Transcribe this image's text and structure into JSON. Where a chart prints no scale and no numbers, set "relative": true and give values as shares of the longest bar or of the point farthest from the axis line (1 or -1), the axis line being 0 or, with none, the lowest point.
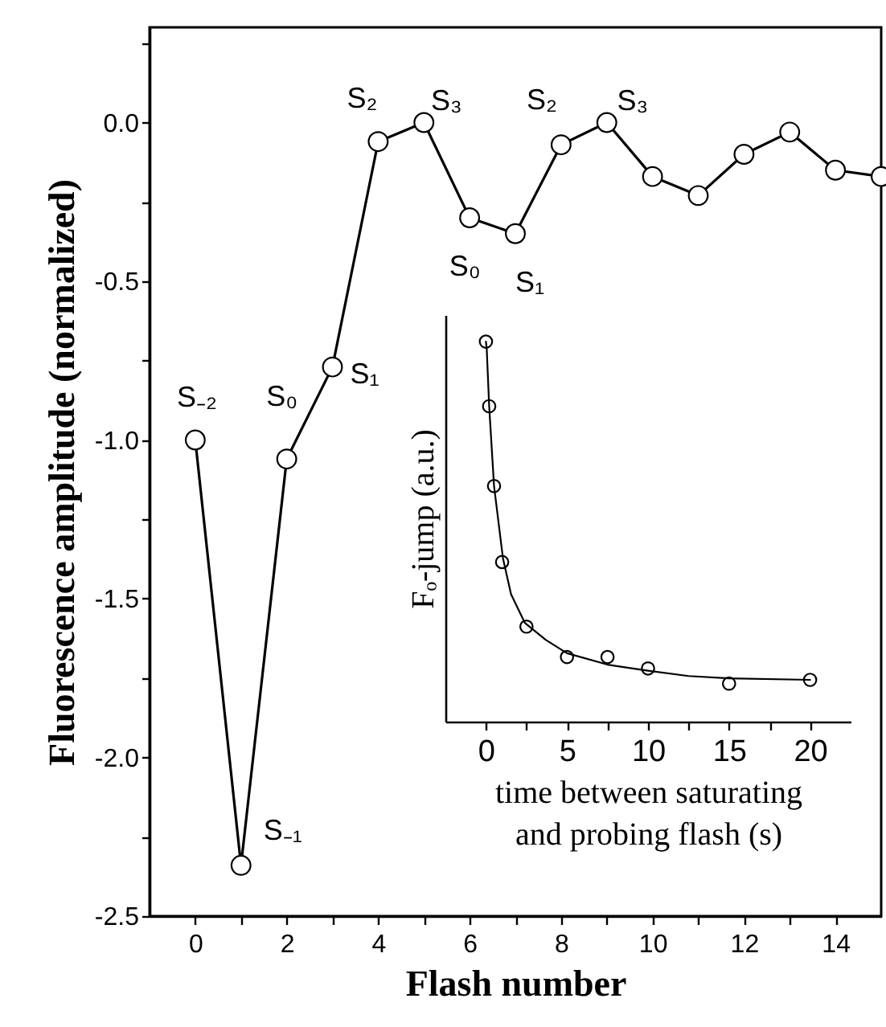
{
  "chart_data": [
    {
      "type": "line",
      "xlabel": "Flash number",
      "ylabel": "Fluorescence amplitude (normalized)",
      "x": [
        0,
        1,
        2,
        3,
        4,
        5,
        6,
        7,
        8,
        9,
        10,
        11,
        12,
        13,
        14,
        15
      ],
      "series": [
        {
          "color": "#000000",
          "values": [
            -1.0,
            -2.34,
            -1.06,
            -0.77,
            -0.06,
            0.0,
            -0.3,
            -0.35,
            -0.07,
            0.0,
            -0.17,
            -0.23,
            -0.1,
            -0.03,
            -0.15,
            -0.17
          ]
        }
      ],
      "xlim": [
        -1,
        15
      ],
      "ylim": [
        -2.5,
        0.3
      ],
      "xticks": [
        0,
        {
          "value": 1,
          "label": null
        },
        2,
        {
          "value": 3,
          "label": null
        },
        4,
        {
          "value": 5,
          "label": null
        },
        6,
        {
          "value": 7,
          "label": null
        },
        8,
        {
          "value": 9,
          "label": null
        },
        10,
        {
          "value": 11,
          "label": null
        },
        12,
        {
          "value": 13,
          "label": null
        },
        14
      ],
      "yticks": [
        {
          "value": -2.5,
          "label": "-2.5"
        },
        {
          "value": -2.25,
          "label": null
        },
        {
          "value": -2.0,
          "label": "-2.0"
        },
        {
          "value": -1.75,
          "label": null
        },
        {
          "value": -1.5,
          "label": "-1.5"
        },
        {
          "value": -1.25,
          "label": null
        },
        {
          "value": -1.0,
          "label": "-1.0"
        },
        {
          "value": -0.75,
          "label": null
        },
        {
          "value": -0.5,
          "label": "-0.5"
        },
        {
          "value": -0.25,
          "label": null
        },
        {
          "value": 0,
          "label": "0.0"
        },
        {
          "value": 0.25,
          "label": null
        }
      ],
      "marker": "circle",
      "line_style": "solid",
      "annotations": [
        {
          "text": "S₋₂",
          "x": 0,
          "y": -1.0
        },
        {
          "text": "S₋₁",
          "x": 1,
          "y": -2.34
        },
        {
          "text": "S₀",
          "x": 2,
          "y": -1.06
        },
        {
          "text": "S₁",
          "x": 3,
          "y": -0.77
        },
        {
          "text": "S₂",
          "x": 4,
          "y": -0.06
        },
        {
          "text": "S₃",
          "x": 5,
          "y": 0.0
        },
        {
          "text": "S₀",
          "x": 6,
          "y": -0.3
        },
        {
          "text": "S₁",
          "x": 7,
          "y": -0.35
        },
        {
          "text": "S₂",
          "x": 8,
          "y": -0.07
        },
        {
          "text": "S₃",
          "x": 9,
          "y": 0.0
        }
      ]
    },
    {
      "type": "scatter",
      "relative": true,
      "xlabel": "time between saturating\nand probing flash (s)",
      "ylabel": "Fₒ-jump (a.u.)",
      "series": [
        {
          "type": "scatter",
          "color": "#000000",
          "x": [
            0,
            0.2,
            0.5,
            1,
            2.5,
            5,
            7.5,
            10,
            15,
            20
          ],
          "values": [
            1.0,
            0.83,
            0.62,
            0.42,
            0.25,
            0.17,
            0.17,
            0.14,
            0.1,
            0.11
          ]
        },
        {
          "type": "line",
          "marker": "none",
          "color": "#000000",
          "x": [
            0,
            0.05,
            0.2,
            0.5,
            1.05,
            1.55,
            2.4,
            3.7,
            5,
            7.5,
            10,
            12.5,
            15,
            20
          ],
          "values": [
            1.0,
            0.98,
            0.83,
            0.62,
            0.43,
            0.335,
            0.26,
            0.215,
            0.18,
            0.15,
            0.134,
            0.12,
            0.114,
            0.11
          ]
        }
      ],
      "xlim": [
        -2.5,
        22.5
      ],
      "xticks": [
        0,
        {
          "value": 2.5,
          "label": null
        },
        5,
        {
          "value": 7.5,
          "label": null
        },
        10,
        {
          "value": 12.5,
          "label": null
        },
        15,
        {
          "value": 17.5,
          "label": null
        },
        20
      ],
      "marker": "circle"
    }
  ]
}
